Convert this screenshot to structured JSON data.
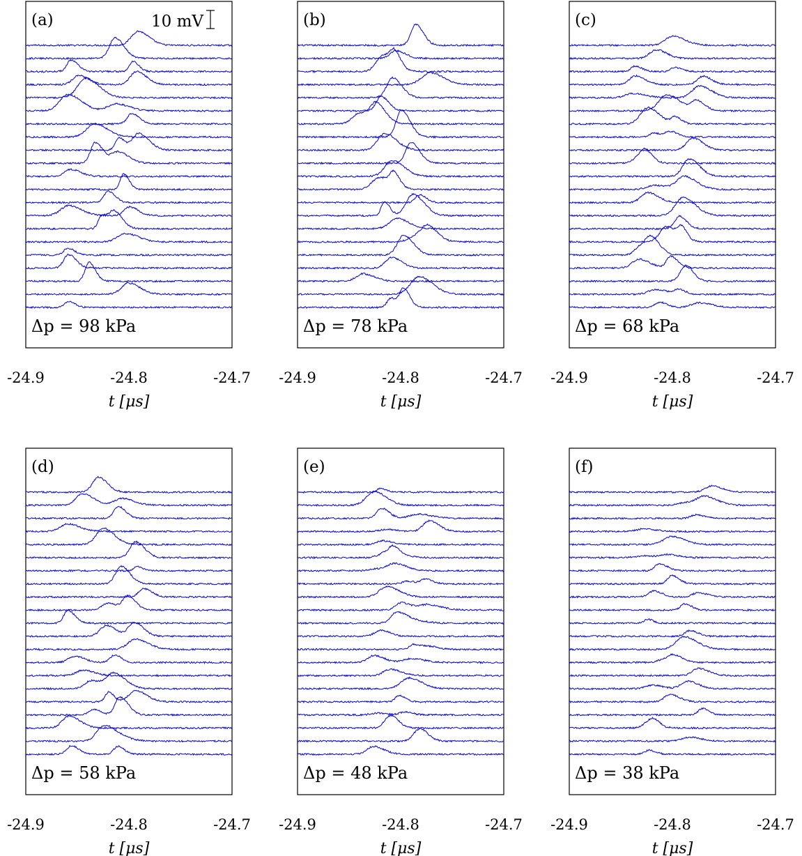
{
  "figure": {
    "scale_bar_label": "10 mV",
    "xlabel": "t [μs]",
    "x_ticks": [
      "-24.9",
      "-24.8",
      "-24.7"
    ]
  },
  "chart_data": [
    {
      "type": "line",
      "panel_label": "(a)",
      "annotation": "Δp = 98 kPa",
      "xlabel": "t [μs]",
      "xlim": [
        -24.9,
        -24.7
      ],
      "xticks": [
        -24.9,
        -24.8,
        -24.7
      ],
      "traces": 21,
      "trace_color": "#0000d4",
      "peak_time_range": [
        -24.86,
        -24.79
      ],
      "peak_amplitude_mV": [
        3,
        12
      ]
    },
    {
      "type": "line",
      "panel_label": "(b)",
      "annotation": "Δp = 78 kPa",
      "xlabel": "t [μs]",
      "xlim": [
        -24.9,
        -24.7
      ],
      "xticks": [
        -24.9,
        -24.8,
        -24.7
      ],
      "traces": 21,
      "trace_color": "#0000d4",
      "peak_time_range": [
        -24.84,
        -24.77
      ],
      "peak_amplitude_mV": [
        3,
        12
      ]
    },
    {
      "type": "line",
      "panel_label": "(c)",
      "annotation": "Δp = 68 kPa",
      "xlabel": "t [μs]",
      "xlim": [
        -24.9,
        -24.7
      ],
      "xticks": [
        -24.9,
        -24.8,
        -24.7
      ],
      "traces": 21,
      "trace_color": "#0000d4",
      "peak_time_range": [
        -24.84,
        -24.77
      ],
      "peak_amplitude_mV": [
        2,
        10
      ]
    },
    {
      "type": "line",
      "panel_label": "(d)",
      "annotation": "Δp = 58 kPa",
      "xlabel": "t [μs]",
      "xlim": [
        -24.9,
        -24.7
      ],
      "xticks": [
        -24.9,
        -24.8,
        -24.7
      ],
      "traces": 21,
      "trace_color": "#0000d4",
      "peak_time_range": [
        -24.86,
        -24.78
      ],
      "peak_amplitude_mV": [
        2,
        10
      ]
    },
    {
      "type": "line",
      "panel_label": "(e)",
      "annotation": "Δp = 48 kPa",
      "xlabel": "t [μs]",
      "xlim": [
        -24.9,
        -24.7
      ],
      "xticks": [
        -24.9,
        -24.8,
        -24.7
      ],
      "traces": 21,
      "trace_color": "#0000d4",
      "peak_time_range": [
        -24.83,
        -24.77
      ],
      "peak_amplitude_mV": [
        1,
        6
      ]
    },
    {
      "type": "line",
      "panel_label": "(f)",
      "annotation": "Δp = 38 kPa",
      "xlabel": "t [μs]",
      "xlim": [
        -24.9,
        -24.7
      ],
      "xticks": [
        -24.9,
        -24.8,
        -24.7
      ],
      "traces": 21,
      "trace_color": "#0000d4",
      "peak_time_range": [
        -24.83,
        -24.76
      ],
      "peak_amplitude_mV": [
        1,
        5
      ]
    }
  ]
}
